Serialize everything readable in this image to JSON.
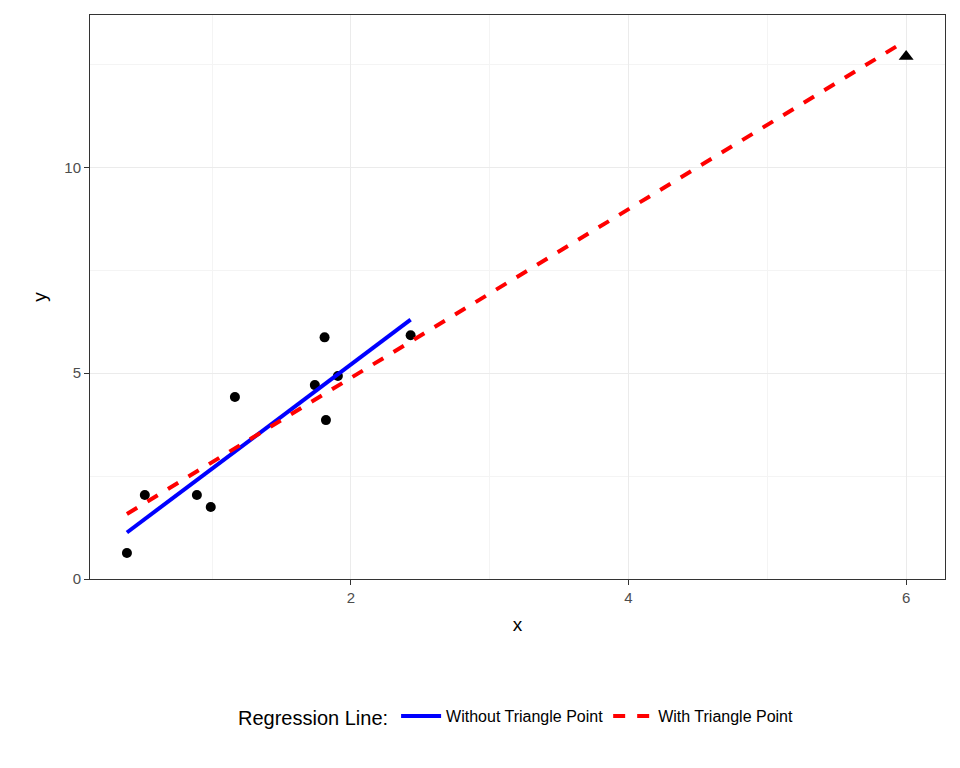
{
  "chart_data": {
    "type": "scatter",
    "x_label": "x",
    "y_label": "y",
    "xlim": [
      0.12,
      6.28
    ],
    "ylim": [
      0,
      13.7
    ],
    "xticks": [
      2,
      4,
      6
    ],
    "yticks": [
      0,
      5,
      10
    ],
    "grid": true,
    "legend": "bottom",
    "legend_title": "Regression Line:",
    "series": [
      {
        "type": "scatter",
        "marker": "circle",
        "color": "#000000",
        "x": [
          0.386,
          0.515,
          0.89,
          0.99,
          1.164,
          1.74,
          1.81,
          1.82,
          1.906,
          2.43
        ],
        "values": [
          0.63,
          2.04,
          2.04,
          1.75,
          4.42,
          4.71,
          5.87,
          3.86,
          4.93,
          5.92
        ]
      },
      {
        "type": "scatter",
        "marker": "triangle",
        "color": "#000000",
        "x": [
          6.0
        ],
        "values": [
          12.69
        ]
      },
      {
        "name": "Without Triangle Point",
        "type": "line",
        "line_style": "solid",
        "color": "#0000ff",
        "x": [
          0.386,
          2.43
        ],
        "values": [
          1.13,
          6.3
        ]
      },
      {
        "name": "With Triangle Point",
        "type": "line",
        "line_style": "dash",
        "color": "#ff0000",
        "x": [
          0.386,
          6.0
        ],
        "values": [
          1.58,
          13.08
        ]
      }
    ]
  }
}
